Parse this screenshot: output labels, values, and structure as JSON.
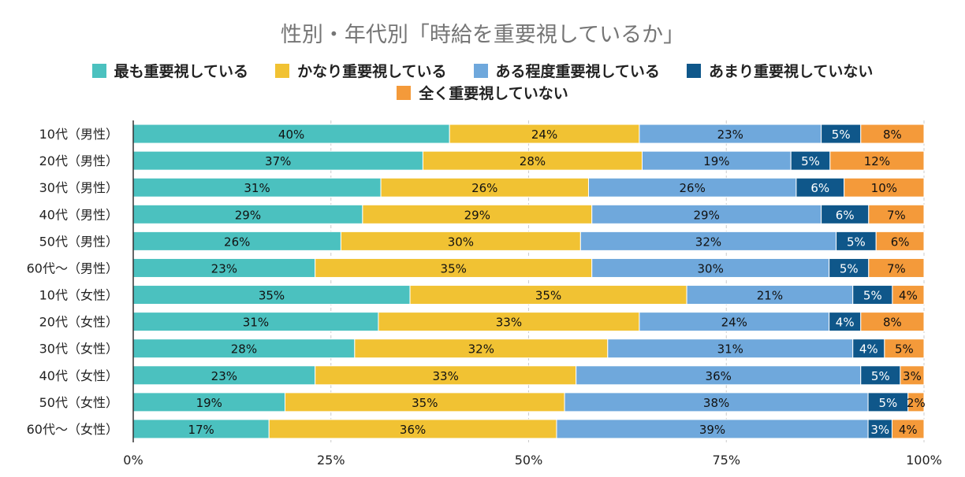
{
  "chart_data": {
    "type": "bar",
    "orientation": "horizontal",
    "stacked": true,
    "percent_stacked": true,
    "title": "性別・年代別「時給を重要視しているか」",
    "categories": [
      "10代（男性）",
      "20代（男性）",
      "30代（男性）",
      "40代（男性）",
      "50代（男性）",
      "60代〜（男性）",
      "10代（女性）",
      "20代（女性）",
      "30代（女性）",
      "40代（女性）",
      "50代（女性）",
      "60代〜（女性）"
    ],
    "series": [
      {
        "name": "最も重要視している",
        "color": "#4bc1bf",
        "label_color": "#111111",
        "values": [
          40,
          37,
          31,
          29,
          26,
          23,
          35,
          31,
          28,
          23,
          19,
          17
        ],
        "labels": [
          "40%",
          "37%",
          "31%",
          "29%",
          "26%",
          "23%",
          "35%",
          "31%",
          "28%",
          "23%",
          "19%",
          "17%"
        ]
      },
      {
        "name": "かなり重要視している",
        "color": "#f1c233",
        "label_color": "#111111",
        "values": [
          24,
          28,
          26,
          29,
          30,
          35,
          35,
          33,
          32,
          33,
          35,
          36
        ],
        "labels": [
          "24%",
          "28%",
          "26%",
          "29%",
          "30%",
          "35%",
          "35%",
          "33%",
          "32%",
          "33%",
          "35%",
          "36%"
        ]
      },
      {
        "name": "ある程度重要視している",
        "color": "#6fa8dc",
        "label_color": "#111111",
        "values": [
          23,
          19,
          26,
          29,
          32,
          30,
          21,
          24,
          31,
          36,
          38,
          39
        ],
        "labels": [
          "23%",
          "19%",
          "26%",
          "29%",
          "32%",
          "30%",
          "21%",
          "24%",
          "31%",
          "36%",
          "38%",
          "39%"
        ]
      },
      {
        "name": "あまり重要視していない",
        "color": "#0f578a",
        "label_color": "#ffffff",
        "values": [
          5,
          5,
          6,
          6,
          5,
          5,
          5,
          4,
          4,
          5,
          5,
          3
        ],
        "labels": [
          "5%",
          "5%",
          "6%",
          "6%",
          "5%",
          "5%",
          "5%",
          "4%",
          "4%",
          "5%",
          "5%",
          "3%"
        ]
      },
      {
        "name": "全く重要視していない",
        "color": "#f49a3a",
        "label_color": "#111111",
        "values": [
          8,
          12,
          10,
          7,
          6,
          7,
          4,
          8,
          5,
          3,
          2,
          4
        ],
        "labels": [
          "8%",
          "12%",
          "10%",
          "7%",
          "6%",
          "7%",
          "4%",
          "8%",
          "5%",
          "3%",
          "2%",
          "4%"
        ]
      }
    ],
    "xaxis": {
      "ticks": [
        0,
        25,
        50,
        75,
        100
      ],
      "tick_labels": [
        "0%",
        "25%",
        "50%",
        "75%",
        "100%"
      ],
      "range": [
        0,
        100
      ]
    },
    "grid": true,
    "legend_position": "top"
  }
}
